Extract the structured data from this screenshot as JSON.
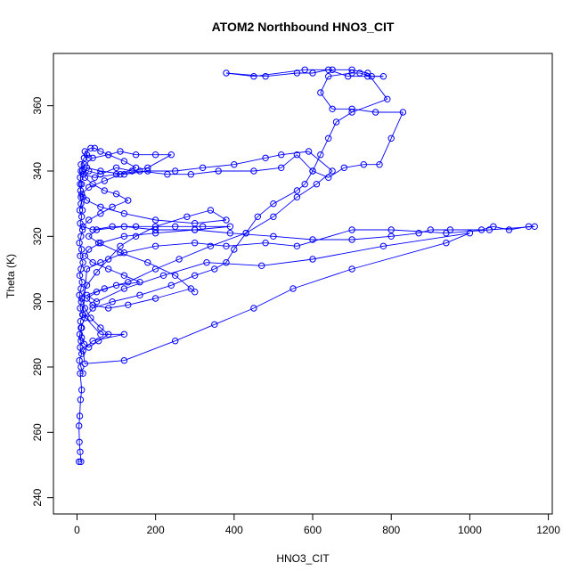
{
  "chart_data": {
    "type": "line",
    "title": "ATOM2 Northbound HNO3_CIT",
    "xlabel": "HNO3_CIT",
    "ylabel": "Theta (K)",
    "xlim": [
      -60,
      1210
    ],
    "ylim": [
      235,
      376
    ],
    "x_ticks": [
      0,
      200,
      400,
      600,
      800,
      1000,
      1200
    ],
    "y_ticks": [
      240,
      260,
      280,
      300,
      320,
      340,
      360
    ],
    "grid": false,
    "marker": "open-circle",
    "color": "#0000ff",
    "series": [
      {
        "values": [
          [
            5,
            251
          ],
          [
            10,
            251
          ],
          [
            8,
            254
          ],
          [
            6,
            257
          ],
          [
            5,
            262
          ],
          [
            7,
            265
          ],
          [
            9,
            270
          ],
          [
            12,
            273
          ],
          [
            8,
            278
          ],
          [
            15,
            278
          ],
          [
            10,
            280
          ],
          [
            6,
            282
          ],
          [
            12,
            284
          ],
          [
            8,
            286
          ],
          [
            10,
            288
          ],
          [
            7,
            290
          ],
          [
            12,
            292
          ],
          [
            9,
            294
          ],
          [
            14,
            296
          ],
          [
            8,
            298
          ],
          [
            11,
            300
          ],
          [
            6,
            302
          ],
          [
            10,
            304
          ],
          [
            13,
            306
          ],
          [
            7,
            308
          ],
          [
            10,
            310
          ],
          [
            15,
            312
          ],
          [
            8,
            314
          ],
          [
            12,
            316
          ],
          [
            6,
            318
          ],
          [
            10,
            320
          ],
          [
            14,
            322
          ],
          [
            8,
            324
          ],
          [
            12,
            326
          ],
          [
            7,
            328
          ],
          [
            10,
            330
          ],
          [
            15,
            332
          ],
          [
            9,
            334
          ],
          [
            12,
            336
          ],
          [
            8,
            338
          ],
          [
            14,
            340
          ],
          [
            10,
            342
          ],
          [
            18,
            344
          ],
          [
            25,
            345
          ],
          [
            30,
            344
          ],
          [
            20,
            346
          ],
          [
            35,
            347
          ],
          [
            45,
            347
          ],
          [
            60,
            346
          ],
          [
            80,
            345
          ],
          [
            110,
            346
          ],
          [
            150,
            345
          ],
          [
            200,
            345
          ],
          [
            240,
            345
          ],
          [
            180,
            341
          ],
          [
            140,
            340
          ],
          [
            100,
            341
          ],
          [
            60,
            339
          ],
          [
            30,
            340
          ],
          [
            20,
            338
          ],
          [
            40,
            336
          ],
          [
            70,
            334
          ],
          [
            100,
            333
          ],
          [
            130,
            331
          ],
          [
            90,
            329
          ],
          [
            60,
            327
          ],
          [
            30,
            325
          ],
          [
            15,
            323
          ],
          [
            40,
            322
          ],
          [
            90,
            323
          ],
          [
            150,
            323
          ],
          [
            250,
            323
          ],
          [
            320,
            323
          ],
          [
            390,
            323
          ],
          [
            300,
            322
          ],
          [
            200,
            321
          ],
          [
            120,
            320
          ],
          [
            60,
            318
          ],
          [
            30,
            316
          ],
          [
            20,
            314
          ],
          [
            40,
            312
          ],
          [
            80,
            310
          ],
          [
            120,
            308
          ],
          [
            160,
            306
          ],
          [
            100,
            305
          ],
          [
            50,
            303
          ],
          [
            25,
            301
          ],
          [
            40,
            299
          ],
          [
            80,
            298
          ],
          [
            130,
            299
          ],
          [
            200,
            301
          ],
          [
            290,
            304
          ],
          [
            300,
            303
          ],
          [
            250,
            308
          ],
          [
            180,
            312
          ],
          [
            110,
            315
          ],
          [
            55,
            318
          ],
          [
            30,
            320
          ],
          [
            50,
            322
          ],
          [
            120,
            323
          ],
          [
            200,
            322
          ],
          [
            300,
            322
          ],
          [
            390,
            321
          ],
          [
            500,
            320
          ],
          [
            600,
            319
          ],
          [
            700,
            319
          ],
          [
            800,
            320
          ],
          [
            870,
            321
          ],
          [
            900,
            322
          ],
          [
            950,
            322
          ],
          [
            1030,
            322
          ],
          [
            1060,
            323
          ],
          [
            1100,
            322
          ],
          [
            1150,
            323
          ],
          [
            1165,
            323
          ],
          [
            1050,
            322
          ],
          [
            940,
            321
          ],
          [
            800,
            322
          ],
          [
            700,
            322
          ],
          [
            560,
            317
          ],
          [
            480,
            318
          ],
          [
            380,
            317
          ],
          [
            300,
            318
          ],
          [
            200,
            317
          ],
          [
            120,
            315
          ],
          [
            60,
            312
          ],
          [
            25,
            310
          ],
          [
            15,
            296
          ],
          [
            60,
            290
          ],
          [
            120,
            290
          ],
          [
            40,
            288
          ],
          [
            15,
            285
          ],
          [
            20,
            281
          ],
          [
            120,
            282
          ],
          [
            250,
            288
          ],
          [
            350,
            293
          ],
          [
            450,
            298
          ],
          [
            550,
            304
          ],
          [
            700,
            310
          ],
          [
            940,
            318
          ],
          [
            1000,
            321
          ],
          [
            780,
            317
          ],
          [
            600,
            313
          ],
          [
            470,
            311
          ],
          [
            330,
            312
          ],
          [
            220,
            308
          ],
          [
            120,
            304
          ],
          [
            50,
            300
          ],
          [
            25,
            302
          ],
          [
            70,
            304
          ],
          [
            130,
            306
          ],
          [
            200,
            310
          ],
          [
            260,
            313
          ],
          [
            340,
            317
          ],
          [
            430,
            321
          ],
          [
            500,
            326
          ],
          [
            560,
            332
          ],
          [
            610,
            336
          ],
          [
            650,
            340
          ],
          [
            590,
            346
          ],
          [
            520,
            345
          ],
          [
            480,
            344
          ],
          [
            400,
            342
          ],
          [
            320,
            341
          ],
          [
            250,
            340
          ],
          [
            180,
            340
          ],
          [
            120,
            339
          ],
          [
            60,
            340
          ],
          [
            25,
            341
          ],
          [
            15,
            339
          ],
          [
            45,
            338
          ],
          [
            100,
            339
          ],
          [
            160,
            340
          ],
          [
            230,
            339
          ],
          [
            290,
            339
          ],
          [
            360,
            340
          ],
          [
            450,
            340
          ],
          [
            520,
            341
          ],
          [
            560,
            345
          ],
          [
            600,
            340
          ],
          [
            640,
            338
          ],
          [
            680,
            341
          ],
          [
            730,
            342
          ],
          [
            770,
            342
          ],
          [
            800,
            350
          ],
          [
            830,
            358
          ],
          [
            760,
            358
          ],
          [
            700,
            359
          ],
          [
            650,
            359
          ],
          [
            620,
            364
          ],
          [
            640,
            369
          ],
          [
            700,
            370
          ],
          [
            720,
            370
          ],
          [
            750,
            369
          ],
          [
            780,
            369
          ],
          [
            740,
            369
          ],
          [
            690,
            369
          ],
          [
            640,
            371
          ],
          [
            600,
            370
          ],
          [
            560,
            370
          ],
          [
            480,
            369
          ],
          [
            380,
            370
          ],
          [
            450,
            369
          ],
          [
            580,
            371
          ],
          [
            650,
            371
          ],
          [
            700,
            371
          ],
          [
            740,
            370
          ],
          [
            790,
            362
          ],
          [
            700,
            358
          ],
          [
            660,
            355
          ],
          [
            640,
            350
          ],
          [
            620,
            345
          ],
          [
            600,
            340
          ],
          [
            580,
            336
          ],
          [
            560,
            334
          ],
          [
            500,
            330
          ],
          [
            460,
            326
          ],
          [
            430,
            321
          ],
          [
            400,
            316
          ],
          [
            380,
            312
          ],
          [
            350,
            310
          ],
          [
            300,
            308
          ],
          [
            240,
            305
          ],
          [
            160,
            302
          ],
          [
            90,
            300
          ],
          [
            40,
            298
          ],
          [
            20,
            295
          ],
          [
            10,
            292
          ],
          [
            12,
            289
          ],
          [
            18,
            287
          ],
          [
            30,
            286
          ],
          [
            55,
            288
          ],
          [
            80,
            290
          ],
          [
            60,
            292
          ],
          [
            35,
            295
          ],
          [
            20,
            298
          ],
          [
            12,
            301
          ],
          [
            25,
            305
          ],
          [
            50,
            309
          ],
          [
            80,
            313
          ],
          [
            110,
            317
          ],
          [
            150,
            320
          ],
          [
            200,
            323
          ],
          [
            280,
            326
          ],
          [
            340,
            328
          ],
          [
            380,
            325
          ],
          [
            300,
            324
          ],
          [
            200,
            325
          ],
          [
            120,
            327
          ],
          [
            60,
            329
          ],
          [
            25,
            331
          ],
          [
            12,
            333
          ],
          [
            30,
            335
          ],
          [
            70,
            337
          ],
          [
            110,
            339
          ],
          [
            150,
            341
          ],
          [
            120,
            343
          ],
          [
            80,
            345
          ],
          [
            40,
            344
          ],
          [
            20,
            342
          ],
          [
            10,
            340
          ],
          [
            8,
            336
          ],
          [
            10,
            332
          ],
          [
            14,
            328
          ]
        ]
      }
    ]
  }
}
